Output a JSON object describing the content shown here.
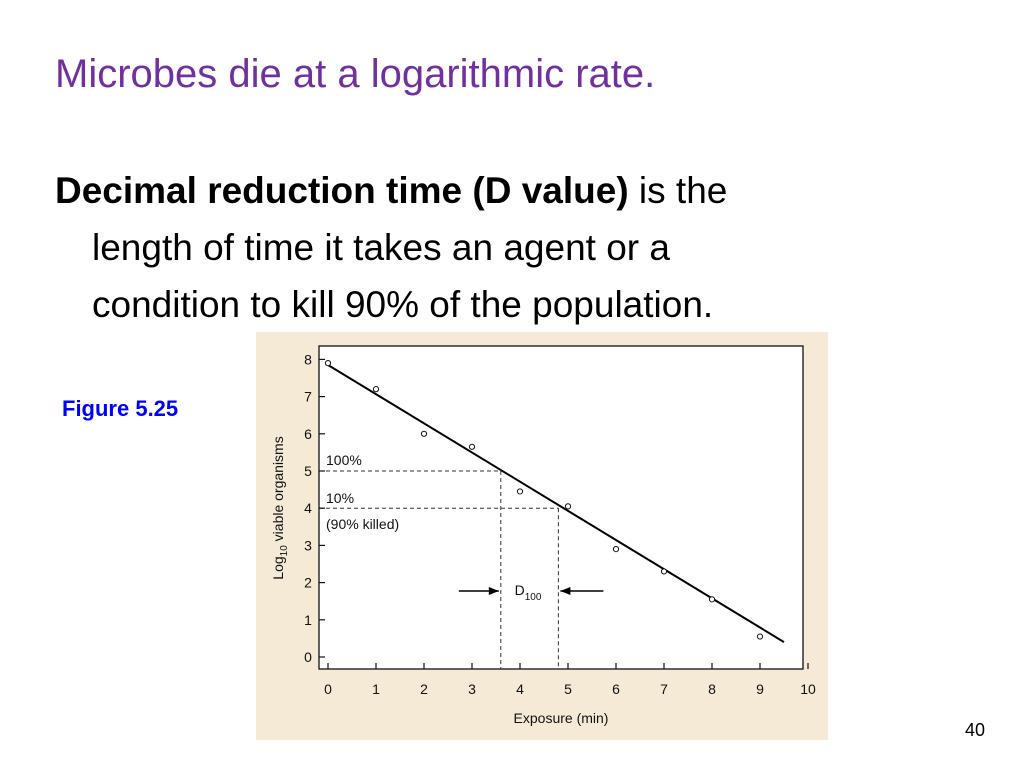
{
  "slide": {
    "title": "Microbes die at a logarithmic rate.",
    "term": "Decimal reduction time (D value)",
    "line1_rest": " is the",
    "line2": "length of time it takes an agent or a",
    "line3": "condition to kill 90% of the population.",
    "figure_label": "Figure 5.25",
    "page_number": "40"
  },
  "colors": {
    "title": "#7030a0",
    "figure_label": "#0000ff",
    "chart_background": "#f4ead6"
  },
  "chart_data": {
    "type": "scatter",
    "xlabel": "Exposure (min)",
    "ylabel": {
      "main": "Log",
      "subscript": "10",
      "rest": " viable organisms"
    },
    "xlim": [
      0,
      10
    ],
    "ylim": [
      0,
      8
    ],
    "x_ticks": [
      "0",
      "1",
      "2",
      "3",
      "4",
      "5",
      "6",
      "7",
      "8",
      "9",
      "10"
    ],
    "y_ticks": [
      "0",
      "1",
      "2",
      "3",
      "4",
      "5",
      "6",
      "7",
      "8"
    ],
    "points": [
      {
        "x": 0,
        "y": 7.9
      },
      {
        "x": 1,
        "y": 7.2
      },
      {
        "x": 2,
        "y": 6.0
      },
      {
        "x": 3,
        "y": 5.65
      },
      {
        "x": 4,
        "y": 4.45
      },
      {
        "x": 5,
        "y": 4.05
      },
      {
        "x": 6,
        "y": 2.9
      },
      {
        "x": 7,
        "y": 2.3
      },
      {
        "x": 8,
        "y": 1.55
      },
      {
        "x": 9,
        "y": 0.55
      }
    ],
    "fit_line": {
      "x": [
        0,
        9.5
      ],
      "y": [
        7.85,
        0.4
      ]
    },
    "reference_lines": [
      {
        "y": 5,
        "x_end": 3.6
      },
      {
        "y": 4,
        "x_end": 4.8
      }
    ],
    "annotations": {
      "label_100": "100%",
      "label_10": "10%",
      "label_90_killed": "(90% killed)",
      "d_label": {
        "main": "D",
        "subscript": "100"
      }
    },
    "d_interval": {
      "x_start": 3.6,
      "x_end": 4.8
    },
    "grid": false
  }
}
